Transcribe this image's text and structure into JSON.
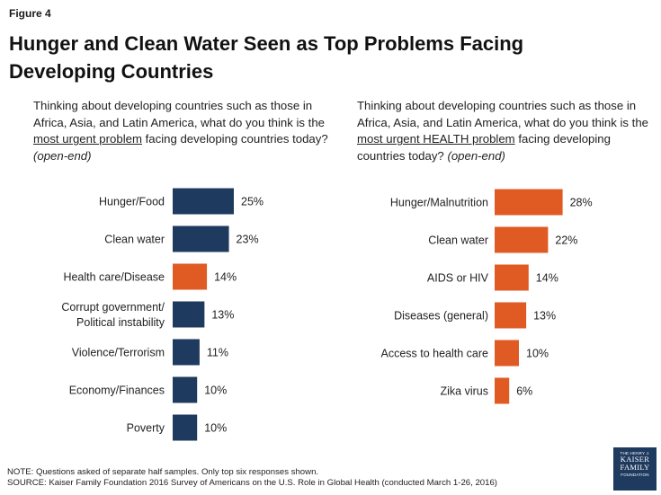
{
  "figure_label": "Figure 4",
  "title": "Hunger and Clean Water Seen as Top Problems Facing Developing Countries",
  "questions": {
    "left": {
      "before": "Thinking about developing countries such as those in Africa, Asia, and Latin America, what do you think is the ",
      "underlined": "most urgent problem",
      "after": " facing developing countries today? ",
      "suffix": "(open-end)"
    },
    "right": {
      "before": "Thinking about developing countries such as those in Africa, Asia, and Latin America, what do you think is the ",
      "underlined": "most urgent HEALTH problem",
      "after": " facing developing countries today? ",
      "suffix": "(open-end)"
    }
  },
  "colors": {
    "navy": "#1f3a5f",
    "orange": "#e05a24"
  },
  "chart_data": [
    {
      "type": "bar",
      "orientation": "horizontal",
      "title": "Most urgent problem facing developing countries",
      "categories": [
        [
          "Hunger/Food"
        ],
        [
          "Clean water"
        ],
        [
          "Health care/Disease"
        ],
        [
          "Corrupt government/",
          "Political instability"
        ],
        [
          "Violence/Terrorism"
        ],
        [
          "Economy/Finances"
        ],
        [
          "Poverty"
        ]
      ],
      "values": [
        25,
        23,
        14,
        13,
        11,
        10,
        10
      ],
      "value_labels": [
        "25%",
        "23%",
        "14%",
        "13%",
        "11%",
        "10%",
        "10%"
      ],
      "bar_colors": [
        "navy",
        "navy",
        "orange",
        "navy",
        "navy",
        "navy",
        "navy"
      ],
      "xlim": [
        0,
        30
      ]
    },
    {
      "type": "bar",
      "orientation": "horizontal",
      "title": "Most urgent HEALTH problem facing developing countries",
      "categories": [
        [
          "Hunger/Malnutrition"
        ],
        [
          "Clean water"
        ],
        [
          "AIDS or HIV"
        ],
        [
          "Diseases (general)"
        ],
        [
          "Access to health care"
        ],
        [
          "Zika virus"
        ]
      ],
      "values": [
        28,
        22,
        14,
        13,
        10,
        6
      ],
      "value_labels": [
        "28%",
        "22%",
        "14%",
        "13%",
        "10%",
        "6%"
      ],
      "bar_colors": [
        "orange",
        "orange",
        "orange",
        "orange",
        "orange",
        "orange"
      ],
      "xlim": [
        0,
        30
      ]
    }
  ],
  "notes": {
    "line1": "NOTE: Questions asked of separate half samples. Only top six responses shown.",
    "line2": "SOURCE: Kaiser Family Foundation 2016 Survey of Americans on the U.S. Role in Global Health (conducted March 1-26, 2016)"
  },
  "logo": {
    "top": "THE HENRY J.",
    "line1": "KAISER",
    "line2": "FAMILY",
    "bottom": "FOUNDATION"
  }
}
